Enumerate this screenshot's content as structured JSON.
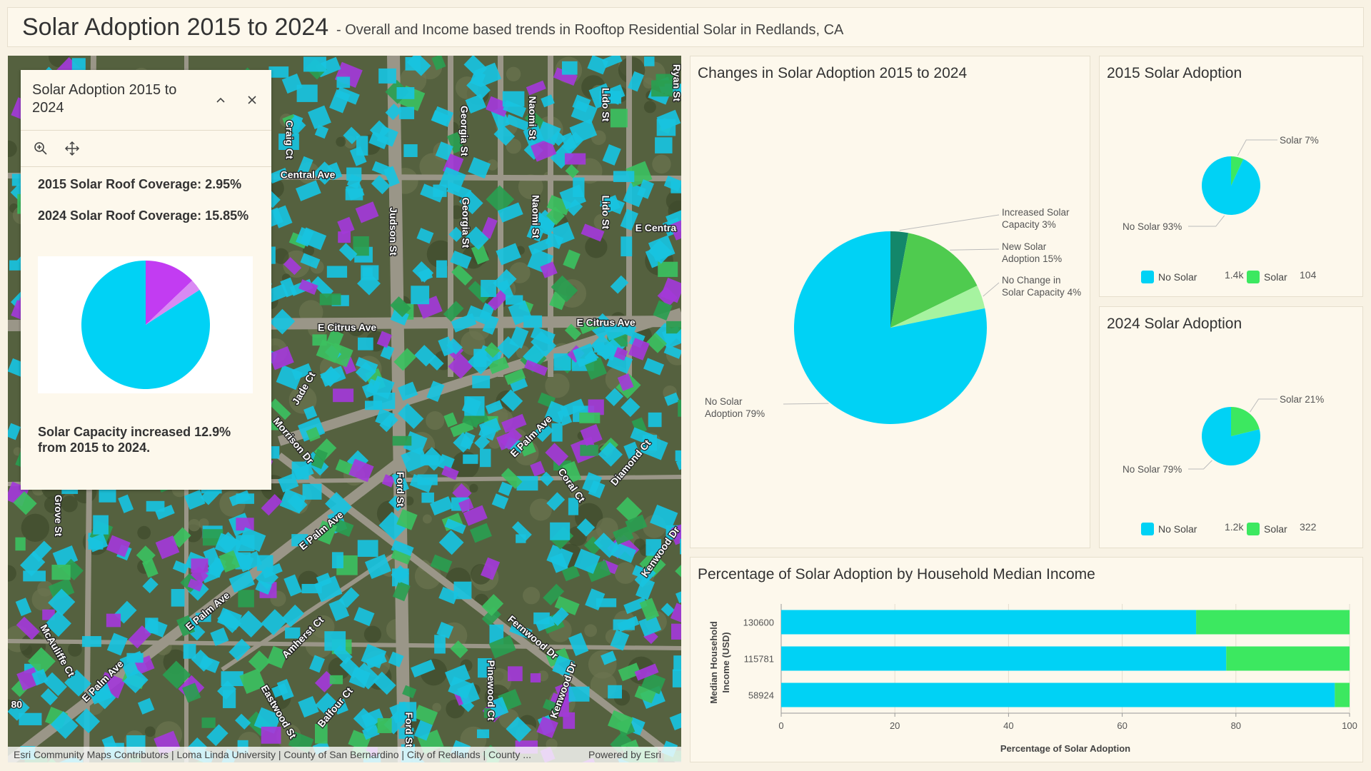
{
  "header": {
    "title": "Solar Adoption 2015 to 2024",
    "subtitle": "- Overall and Income based trends in Rooftop Residential Solar in Redlands, CA"
  },
  "map": {
    "street_labels": [
      "Craig Ct",
      "Central Ave",
      "Judson St",
      "Georgia St",
      "Georgia St",
      "Naomi St",
      "Naomi St",
      "Lido St",
      "Lido St",
      "Ryan St",
      "E Centra",
      "E Citrus Ave",
      "E Citrus Ave",
      "Jade Ct",
      "Morrison Dr",
      "Ford St",
      "Ford St",
      "E Palm Ave",
      "E Palm Ave",
      "E Palm Ave",
      "E Palm Ave",
      "Coral Ct",
      "Diamond Ct",
      "Kenwood Dr",
      "Kenwood Dr",
      "Grove St",
      "McAuliffe Ct",
      "Amherst Ct",
      "Eastwood St",
      "Balfour Ct",
      "Fernwood Dr",
      "Pinewood Ct",
      "80"
    ],
    "attribution": "Esri Community Maps Contributors | Loma Linda University | County of San Bernardino | City of Redlands | County ...",
    "powered_by": "Powered by Esri",
    "popup": {
      "title": "Solar Adoption 2015 to 2024",
      "lines": [
        "2015 Solar Roof Coverage: 2.95%",
        "2024 Solar Roof Coverage: 15.85%"
      ],
      "summary": "Solar Capacity increased 12.9% from 2015 to 2024."
    }
  },
  "chart_data": [
    {
      "type": "pie",
      "values": [
        12.9,
        2.95,
        84.15
      ],
      "colors": [
        "#c23cf2",
        "#d98af3",
        "#00d2f5"
      ]
    },
    {
      "type": "pie",
      "title": "Changes in Solar Adoption 2015 to 2024",
      "categories": [
        "Increased Solar Capacity",
        "New Solar Adoption",
        "No Change in Solar Capacity",
        "No Solar Adoption"
      ],
      "values": [
        3,
        15,
        4,
        79
      ],
      "value_labels": [
        "3%",
        "15%",
        "4%",
        "79%"
      ],
      "colors": [
        "#13876a",
        "#4fcb4f",
        "#a6f3a0",
        "#00d2f5"
      ]
    },
    {
      "type": "pie",
      "title": "2015 Solar Adoption",
      "categories": [
        "No Solar",
        "Solar"
      ],
      "values": [
        1400,
        104
      ],
      "value_labels": [
        "1.4k",
        "104"
      ],
      "slice_labels": [
        "No Solar 93%",
        "Solar 7%"
      ],
      "colors": [
        "#00d2f5",
        "#3ce860"
      ]
    },
    {
      "type": "pie",
      "title": "2024 Solar Adoption",
      "categories": [
        "No Solar",
        "Solar"
      ],
      "values": [
        1200,
        322
      ],
      "value_labels": [
        "1.2k",
        "322"
      ],
      "slice_labels": [
        "No Solar 79%",
        "Solar 21%"
      ],
      "colors": [
        "#00d2f5",
        "#3ce860"
      ]
    },
    {
      "type": "bar",
      "orientation": "horizontal",
      "stacked": true,
      "title": "Percentage of Solar Adoption by Household Median Income",
      "x_label": "Percentage of Solar Adoption",
      "y_label": "Median Household Income (USD)",
      "categories": [
        "130600",
        "115781",
        "58924"
      ],
      "series": [
        {
          "color": "#00d2f5",
          "values": [
            73,
            78.3,
            97.4
          ]
        },
        {
          "color": "#3ce860",
          "values": [
            27,
            21.7,
            2.6
          ]
        }
      ],
      "xlim": [
        0,
        100
      ],
      "xticks": [
        0,
        20,
        40,
        60,
        80,
        100
      ],
      "grid": true
    }
  ]
}
